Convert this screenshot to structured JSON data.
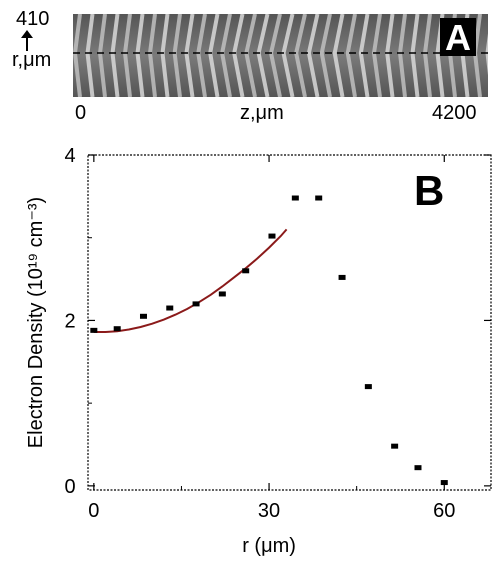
{
  "panel_a": {
    "letter": "A",
    "y_top_label": "410",
    "y_axis_label": "r,μm",
    "x_left_label": "0",
    "x_axis_label": "z,μm",
    "x_right_label": "4200"
  },
  "chart_data": {
    "type": "scatter",
    "panel_letter": "B",
    "title": "",
    "xlabel": "r (μm)",
    "ylabel": "Electron Density (10¹⁹ cm⁻³)",
    "xlim": [
      -1,
      68
    ],
    "ylim": [
      -0.05,
      4
    ],
    "xticks": [
      0,
      30,
      60
    ],
    "yticks": [
      0,
      2,
      4
    ],
    "series": [
      {
        "kind": "points",
        "color": "#000000",
        "x": [
          0,
          4,
          8.5,
          13,
          17.5,
          22,
          26,
          30.5,
          34.5,
          38.5,
          42.5,
          47,
          51.5,
          55.5,
          60
        ],
        "y": [
          1.88,
          1.9,
          2.05,
          2.15,
          2.2,
          2.32,
          2.6,
          3.02,
          3.48,
          3.48,
          2.52,
          1.2,
          0.48,
          0.22,
          0.04
        ]
      },
      {
        "kind": "fit-curve",
        "color": "#8b1a1a",
        "x": [
          0,
          2,
          4,
          6,
          8,
          10,
          12,
          14,
          16,
          18,
          20,
          22,
          24,
          26,
          28,
          30,
          32,
          33
        ],
        "y": [
          1.86,
          1.86,
          1.87,
          1.89,
          1.92,
          1.96,
          2.01,
          2.07,
          2.14,
          2.22,
          2.31,
          2.41,
          2.52,
          2.63,
          2.75,
          2.88,
          3.02,
          3.1
        ]
      }
    ]
  },
  "colors": {
    "fit_line": "#8b1a1a",
    "markers": "#000000"
  }
}
